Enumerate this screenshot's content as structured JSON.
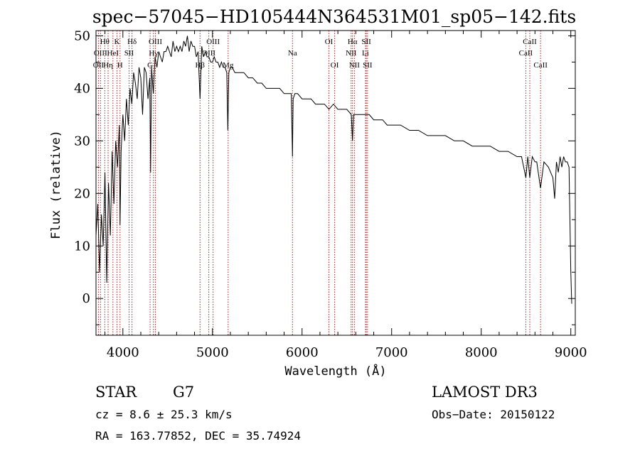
{
  "chart_data": {
    "type": "line",
    "title": "spec−57045−HD105444N364531M01_sp05−142.fits",
    "xlabel": "Wavelength (Å)",
    "ylabel": "Flux (relative)",
    "xlim": [
      3700,
      9050
    ],
    "ylim": [
      -7,
      51
    ],
    "xticks": [
      4000,
      5000,
      6000,
      7000,
      8000,
      9000
    ],
    "yticks": [
      0,
      10,
      20,
      30,
      40,
      50
    ],
    "grid": false,
    "line_color": "#000000",
    "marker_color": "#b22222",
    "spectrum": {
      "x": [
        3700,
        3720,
        3740,
        3760,
        3780,
        3800,
        3820,
        3840,
        3860,
        3880,
        3900,
        3920,
        3940,
        3960,
        3968,
        3980,
        4000,
        4020,
        4040,
        4060,
        4080,
        4100,
        4120,
        4140,
        4160,
        4180,
        4200,
        4220,
        4240,
        4260,
        4280,
        4300,
        4310,
        4320,
        4340,
        4360,
        4380,
        4400,
        4420,
        4440,
        4460,
        4480,
        4500,
        4520,
        4540,
        4560,
        4580,
        4600,
        4620,
        4640,
        4660,
        4680,
        4700,
        4720,
        4740,
        4760,
        4780,
        4800,
        4820,
        4840,
        4861,
        4880,
        4900,
        4920,
        4940,
        4960,
        4980,
        5000,
        5020,
        5040,
        5060,
        5080,
        5100,
        5120,
        5140,
        5160,
        5172,
        5183,
        5200,
        5220,
        5250,
        5300,
        5350,
        5400,
        5450,
        5500,
        5550,
        5600,
        5650,
        5700,
        5750,
        5800,
        5850,
        5880,
        5893,
        5900,
        5920,
        5950,
        6000,
        6050,
        6100,
        6150,
        6200,
        6250,
        6300,
        6350,
        6400,
        6450,
        6500,
        6550,
        6563,
        6575,
        6600,
        6650,
        6700,
        6750,
        6800,
        6850,
        6900,
        6950,
        7000,
        7100,
        7200,
        7300,
        7400,
        7500,
        7600,
        7700,
        7800,
        7900,
        8000,
        8100,
        8200,
        8300,
        8400,
        8450,
        8498,
        8520,
        8542,
        8570,
        8600,
        8620,
        8662,
        8700,
        8750,
        8800,
        8820,
        8840,
        8860,
        8880,
        8900,
        8920,
        8940,
        8960,
        8980,
        9000,
        9010
      ],
      "y": [
        12,
        18,
        5,
        16,
        10,
        24,
        3,
        22,
        12,
        28,
        18,
        30,
        25,
        33,
        14,
        28,
        35,
        30,
        38,
        33,
        40,
        37,
        43,
        41,
        38,
        44,
        42,
        35,
        44,
        43,
        38,
        42,
        24,
        44,
        39,
        46,
        44,
        47,
        46,
        45,
        47,
        47,
        48,
        47,
        46,
        49,
        47,
        48,
        47,
        48,
        47,
        49,
        48,
        50,
        47,
        49,
        48,
        48,
        46,
        47,
        38,
        48,
        46,
        47,
        46,
        46,
        45,
        45,
        46,
        45,
        45,
        44,
        45,
        44,
        44,
        43,
        32,
        43,
        44,
        44,
        43,
        43,
        43,
        42,
        42,
        41,
        41,
        40,
        40,
        40,
        40,
        39,
        39,
        39,
        27,
        38,
        39,
        39,
        38,
        38,
        38,
        37,
        37,
        37,
        36,
        37,
        36,
        36,
        36,
        35,
        30,
        35,
        35,
        35,
        35,
        35,
        34,
        34,
        34,
        33,
        33,
        33,
        32,
        32,
        31,
        31,
        31,
        30,
        30,
        29,
        29,
        29,
        28,
        28,
        27,
        27,
        23,
        27,
        23,
        27,
        26,
        26,
        21,
        26,
        25,
        23,
        19,
        26,
        24,
        27,
        25,
        27,
        26,
        26,
        25,
        5,
        -1
      ]
    },
    "line_markers": [
      {
        "wavelength": 3727,
        "label": "OII",
        "row": 2
      },
      {
        "wavelength": 3750,
        "label": "OIII",
        "row": 1
      },
      {
        "wavelength": 3798,
        "label": "Hθ",
        "row": 0
      },
      {
        "wavelength": 3835,
        "label": "Hη",
        "row": 2
      },
      {
        "wavelength": 3889,
        "label": "HeI",
        "row": 1
      },
      {
        "wavelength": 3934,
        "label": "K",
        "row": 0
      },
      {
        "wavelength": 3968,
        "label": "H",
        "row": 2
      },
      {
        "wavelength": 4069,
        "label": "SII",
        "row": 1
      },
      {
        "wavelength": 4102,
        "label": "Hδ",
        "row": 0
      },
      {
        "wavelength": 4304,
        "label": "G",
        "row": 2
      },
      {
        "wavelength": 4341,
        "label": "Hγ",
        "row": 1
      },
      {
        "wavelength": 4363,
        "label": "OIII",
        "row": 0
      },
      {
        "wavelength": 4861,
        "label": "Hβ",
        "row": 2
      },
      {
        "wavelength": 4959,
        "label": "OIII",
        "row": 1
      },
      {
        "wavelength": 5007,
        "label": "OIII",
        "row": 0
      },
      {
        "wavelength": 5175,
        "label": "Mg",
        "row": 2
      },
      {
        "wavelength": 5893,
        "label": "Na",
        "row": 1
      },
      {
        "wavelength": 6300,
        "label": "OI",
        "row": 0
      },
      {
        "wavelength": 6364,
        "label": "OI",
        "row": 2
      },
      {
        "wavelength": 6548,
        "label": "NII",
        "row": 1
      },
      {
        "wavelength": 6563,
        "label": "Hα",
        "row": 0
      },
      {
        "wavelength": 6584,
        "label": "NII",
        "row": 2
      },
      {
        "wavelength": 6708,
        "label": "Li",
        "row": 1
      },
      {
        "wavelength": 6717,
        "label": "SII",
        "row": 0
      },
      {
        "wavelength": 6731,
        "label": "SII",
        "row": 2
      },
      {
        "wavelength": 8498,
        "label": "CaII",
        "row": 1
      },
      {
        "wavelength": 8542,
        "label": "CaII",
        "row": 0
      },
      {
        "wavelength": 8662,
        "label": "CaII",
        "row": 2
      }
    ]
  },
  "info": {
    "object_class": "STAR",
    "subclass": "G7",
    "redshift_text": "cz = 8.6 ± 25.3 km/s",
    "coords_text": "RA = 163.77852, DEC =  35.74924",
    "survey": "LAMOST DR3",
    "obs_date": "Obs−Date: 20150122"
  }
}
